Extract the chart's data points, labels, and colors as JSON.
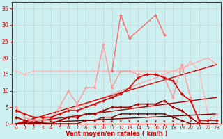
{
  "xlabel": "Vent moyen/en rafales ( km/h )",
  "background_color": "#cef0f0",
  "grid_color": "#bbbbbb",
  "xlim": [
    -0.5,
    23.5
  ],
  "ylim": [
    0,
    37
  ],
  "yticks": [
    0,
    5,
    10,
    15,
    20,
    25,
    30,
    35
  ],
  "xticks": [
    0,
    1,
    2,
    3,
    4,
    5,
    6,
    7,
    8,
    9,
    10,
    11,
    12,
    13,
    14,
    15,
    16,
    17,
    18,
    19,
    20,
    21,
    22,
    23
  ],
  "lines": [
    {
      "x": [
        0,
        1,
        2,
        3,
        4,
        5,
        6,
        7,
        8,
        9,
        10,
        11,
        12,
        13,
        14,
        15,
        16,
        17,
        18,
        19,
        20,
        21,
        22
      ],
      "y": [
        16,
        15,
        16,
        16,
        16,
        16,
        16,
        16,
        16,
        16,
        16,
        16,
        16,
        16,
        16,
        16,
        16,
        16,
        16,
        16,
        19,
        16,
        3
      ],
      "color": "#ffbbbb",
      "linewidth": 1.0,
      "marker": "D",
      "markersize": 2.0,
      "zorder": 2
    },
    {
      "x": [
        0,
        1,
        2,
        3,
        4,
        5,
        6,
        7,
        8,
        9,
        10,
        11,
        12,
        13,
        14,
        15,
        16,
        17,
        18,
        19,
        20,
        21,
        22,
        23
      ],
      "y": [
        0,
        0.5,
        1,
        1.5,
        2,
        3,
        4,
        5,
        6,
        7,
        8,
        9,
        10,
        11,
        12,
        13,
        14,
        15,
        16,
        17,
        18,
        19,
        20,
        18
      ],
      "color": "#ffaaaa",
      "linewidth": 1.0,
      "marker": null,
      "markersize": 0,
      "zorder": 2
    },
    {
      "x": [
        0,
        1,
        2,
        3,
        4,
        5,
        6,
        7,
        8,
        9,
        10,
        11,
        12,
        13,
        14,
        15,
        16,
        17,
        18,
        19,
        20,
        21,
        22,
        23
      ],
      "y": [
        5,
        2,
        1,
        1,
        1,
        5,
        10,
        6,
        11,
        11,
        24,
        11,
        16,
        16,
        15,
        15,
        15,
        14,
        8,
        18,
        8,
        0,
        1,
        3
      ],
      "color": "#ff9999",
      "linewidth": 1.0,
      "marker": "D",
      "markersize": 2.0,
      "zorder": 3
    },
    {
      "x": [
        11,
        12,
        13,
        16,
        17
      ],
      "y": [
        16,
        33,
        26,
        33,
        27
      ],
      "color": "#ff6666",
      "linewidth": 1.0,
      "marker": "D",
      "markersize": 2.0,
      "zorder": 3
    },
    {
      "x": [
        0,
        1,
        2,
        3,
        4,
        5,
        6,
        7,
        8,
        9,
        10,
        11,
        12,
        13,
        14,
        15,
        16,
        17,
        18,
        19,
        20,
        21,
        22,
        23
      ],
      "y": [
        4,
        3,
        2,
        2,
        2,
        3,
        4,
        4,
        5,
        6,
        7,
        8,
        9,
        11,
        14,
        15,
        15,
        14,
        13,
        9,
        7,
        1,
        1,
        1
      ],
      "color": "#dd0000",
      "linewidth": 1.2,
      "marker": "D",
      "markersize": 2.0,
      "zorder": 4
    },
    {
      "x": [
        0,
        23
      ],
      "y": [
        0,
        18
      ],
      "color": "#dd0000",
      "linewidth": 1.0,
      "marker": null,
      "markersize": 0,
      "zorder": 2,
      "linestyle": "-"
    },
    {
      "x": [
        0,
        1,
        2,
        3,
        4,
        5,
        6,
        7,
        8,
        9,
        10,
        11,
        12,
        13,
        14,
        15,
        16,
        17,
        18,
        19,
        20,
        21,
        22,
        23
      ],
      "y": [
        2,
        1,
        0,
        0,
        0,
        1,
        2,
        2,
        3,
        3,
        4,
        5,
        5,
        5,
        6,
        6,
        6,
        7,
        5,
        4,
        2,
        0,
        0,
        0
      ],
      "color": "#aa0000",
      "linewidth": 1.2,
      "marker": "D",
      "markersize": 2.0,
      "zorder": 4
    },
    {
      "x": [
        0,
        23
      ],
      "y": [
        0,
        8
      ],
      "color": "#aa0000",
      "linewidth": 1.0,
      "marker": null,
      "markersize": 0,
      "zorder": 2,
      "linestyle": "-"
    },
    {
      "x": [
        0,
        1,
        2,
        3,
        4,
        5,
        6,
        7,
        8,
        9,
        10,
        11,
        12,
        13,
        14,
        15,
        16,
        17,
        18,
        19,
        20,
        21,
        22,
        23
      ],
      "y": [
        0,
        0,
        0,
        0,
        0,
        0,
        0,
        0,
        1,
        1,
        2,
        2,
        3,
        3,
        3,
        3,
        3,
        3,
        2,
        1,
        0,
        0,
        0,
        0
      ],
      "color": "#770000",
      "linewidth": 1.0,
      "marker": "D",
      "markersize": 1.5,
      "zorder": 4
    },
    {
      "x": [
        0,
        23
      ],
      "y": [
        0,
        3
      ],
      "color": "#770000",
      "linewidth": 1.0,
      "marker": null,
      "markersize": 0,
      "zorder": 2,
      "linestyle": "-"
    }
  ],
  "arrow_down": [
    1,
    3,
    4,
    5,
    6,
    7,
    8,
    9,
    10,
    11,
    12,
    13,
    14,
    15,
    16,
    17,
    18,
    19,
    20,
    22
  ],
  "arrow_up": [
    21
  ],
  "arrow_down2": [
    23
  ]
}
